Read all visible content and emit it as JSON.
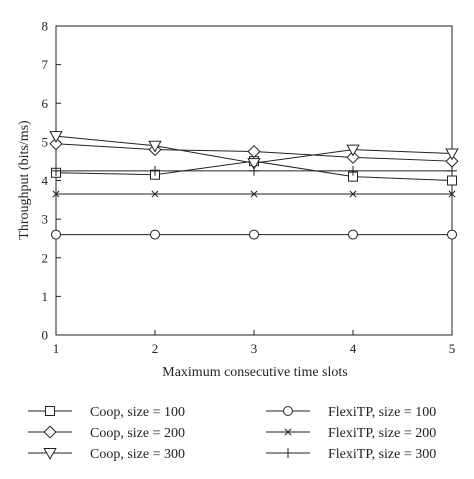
{
  "chart_data": {
    "type": "line",
    "xlabel": "Maximum consecutive time slots",
    "ylabel": "Throughput (bits/ms)",
    "x": [
      1,
      2,
      3,
      4,
      5
    ],
    "xlim": [
      1,
      5
    ],
    "ylim": [
      0,
      8
    ],
    "xticks": [
      "1",
      "2",
      "3",
      "4",
      "5"
    ],
    "yticks": [
      "0",
      "1",
      "2",
      "3",
      "4",
      "5",
      "6",
      "7",
      "8"
    ],
    "grid": false,
    "legend_position": "bottom",
    "series": [
      {
        "name": "Coop, size = 100",
        "marker": "square",
        "values": [
          4.2,
          4.15,
          4.5,
          4.1,
          4.0
        ]
      },
      {
        "name": "Coop, size = 200",
        "marker": "diamond",
        "values": [
          4.95,
          4.8,
          4.75,
          4.6,
          4.5
        ]
      },
      {
        "name": "Coop, size = 300",
        "marker": "triangle-down",
        "values": [
          5.15,
          4.9,
          4.45,
          4.8,
          4.7
        ]
      },
      {
        "name": "FlexiTP, size = 100",
        "marker": "circle",
        "values": [
          2.6,
          2.6,
          2.6,
          2.6,
          2.6
        ]
      },
      {
        "name": "FlexiTP, size = 200",
        "marker": "x",
        "values": [
          3.65,
          3.65,
          3.65,
          3.65,
          3.65
        ]
      },
      {
        "name": "FlexiTP, size = 300",
        "marker": "plus",
        "values": [
          4.25,
          4.25,
          4.25,
          4.25,
          4.25
        ]
      }
    ]
  }
}
